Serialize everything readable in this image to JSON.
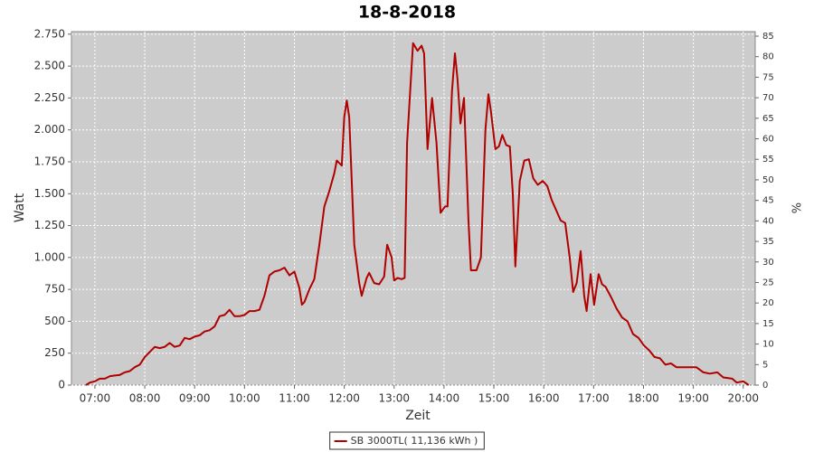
{
  "chart_data": {
    "type": "line",
    "title": "18-8-2018",
    "x_label": "Zeit",
    "y_label": "Watt",
    "y2_label": "%",
    "x": [
      6.82,
      6.9,
      7.0,
      7.1,
      7.2,
      7.3,
      7.4,
      7.5,
      7.6,
      7.7,
      7.8,
      7.9,
      8.0,
      8.1,
      8.2,
      8.3,
      8.4,
      8.5,
      8.6,
      8.7,
      8.8,
      8.9,
      9.0,
      9.1,
      9.2,
      9.3,
      9.4,
      9.5,
      9.6,
      9.7,
      9.8,
      9.9,
      10.0,
      10.1,
      10.2,
      10.3,
      10.4,
      10.5,
      10.6,
      10.7,
      10.8,
      10.9,
      11.0,
      11.1,
      11.15,
      11.2,
      11.3,
      11.4,
      11.5,
      11.6,
      11.7,
      11.8,
      11.85,
      11.95,
      12.0,
      12.05,
      12.1,
      12.2,
      12.3,
      12.35,
      12.45,
      12.5,
      12.6,
      12.7,
      12.8,
      12.86,
      12.95,
      13.0,
      13.07,
      13.15,
      13.21,
      13.26,
      13.38,
      13.47,
      13.55,
      13.6,
      13.67,
      13.76,
      13.85,
      13.93,
      14.02,
      14.07,
      14.16,
      14.22,
      14.27,
      14.33,
      14.4,
      14.49,
      14.54,
      14.65,
      14.74,
      14.83,
      14.89,
      14.94,
      15.03,
      15.1,
      15.17,
      15.25,
      15.32,
      15.38,
      15.43,
      15.52,
      15.61,
      15.7,
      15.79,
      15.88,
      15.98,
      16.07,
      16.16,
      16.25,
      16.34,
      16.43,
      16.52,
      16.59,
      16.66,
      16.74,
      16.81,
      16.86,
      16.94,
      17.01,
      17.1,
      17.17,
      17.24,
      17.35,
      17.46,
      17.57,
      17.68,
      17.79,
      17.9,
      18.01,
      18.12,
      18.22,
      18.33,
      18.44,
      18.55,
      18.66,
      18.88,
      19.06,
      19.2,
      19.33,
      19.48,
      19.6,
      19.78,
      19.87,
      20.0,
      20.11
    ],
    "series": [
      {
        "name": "SB 3000TL( 11,136 kWh )",
        "color": "#b00000",
        "values": [
          0,
          20,
          30,
          50,
          50,
          70,
          75,
          80,
          100,
          110,
          140,
          160,
          220,
          260,
          300,
          290,
          300,
          330,
          300,
          310,
          370,
          360,
          380,
          390,
          420,
          430,
          460,
          540,
          550,
          590,
          540,
          540,
          550,
          580,
          580,
          590,
          700,
          860,
          890,
          900,
          920,
          860,
          890,
          760,
          630,
          650,
          750,
          830,
          1100,
          1400,
          1520,
          1660,
          1760,
          1720,
          2100,
          2230,
          2100,
          1100,
          800,
          700,
          840,
          880,
          800,
          790,
          850,
          1100,
          1000,
          820,
          840,
          830,
          840,
          1900,
          2680,
          2620,
          2660,
          2600,
          1850,
          2250,
          1900,
          1350,
          1400,
          1400,
          2300,
          2600,
          2400,
          2050,
          2250,
          1300,
          900,
          900,
          1000,
          2000,
          2280,
          2150,
          1850,
          1870,
          1960,
          1880,
          1870,
          1500,
          930,
          1600,
          1760,
          1770,
          1620,
          1570,
          1600,
          1560,
          1450,
          1370,
          1290,
          1270,
          1000,
          730,
          800,
          1050,
          700,
          580,
          870,
          630,
          870,
          790,
          770,
          690,
          600,
          530,
          500,
          400,
          370,
          310,
          270,
          220,
          210,
          160,
          170,
          140,
          140,
          140,
          100,
          90,
          100,
          60,
          50,
          20,
          30,
          0
        ]
      }
    ],
    "xlim": [
      6.53,
      20.24
    ],
    "xticks": [
      {
        "value": 7,
        "label": "07:00"
      },
      {
        "value": 8,
        "label": "08:00"
      },
      {
        "value": 9,
        "label": "09:00"
      },
      {
        "value": 10,
        "label": "10:00"
      },
      {
        "value": 11,
        "label": "11:00"
      },
      {
        "value": 12,
        "label": "12:00"
      },
      {
        "value": 13,
        "label": "13:00"
      },
      {
        "value": 14,
        "label": "14:00"
      },
      {
        "value": 15,
        "label": "15:00"
      },
      {
        "value": 16,
        "label": "16:00"
      },
      {
        "value": 17,
        "label": "17:00"
      },
      {
        "value": 18,
        "label": "18:00"
      },
      {
        "value": 19,
        "label": "19:00"
      },
      {
        "value": 20,
        "label": "20:00"
      }
    ],
    "ylim": [
      0,
      2770
    ],
    "yticks": [
      0,
      250,
      500,
      750,
      {
        "value": 1000,
        "label": "1.000"
      },
      {
        "value": 1250,
        "label": "1.250"
      },
      {
        "value": 1500,
        "label": "1.500"
      },
      {
        "value": 1750,
        "label": "1.750"
      },
      {
        "value": 2000,
        "label": "2.000"
      },
      {
        "value": 2250,
        "label": "2.250"
      },
      {
        "value": 2500,
        "label": "2.500"
      },
      {
        "value": 2750,
        "label": "2.750"
      }
    ],
    "y2lim": [
      0,
      86.1
    ],
    "y2ticks": [
      0,
      5,
      10,
      15,
      20,
      25,
      30,
      35,
      40,
      45,
      50,
      55,
      60,
      65,
      70,
      75,
      80,
      85
    ],
    "grid": true,
    "legend": "bottom"
  }
}
